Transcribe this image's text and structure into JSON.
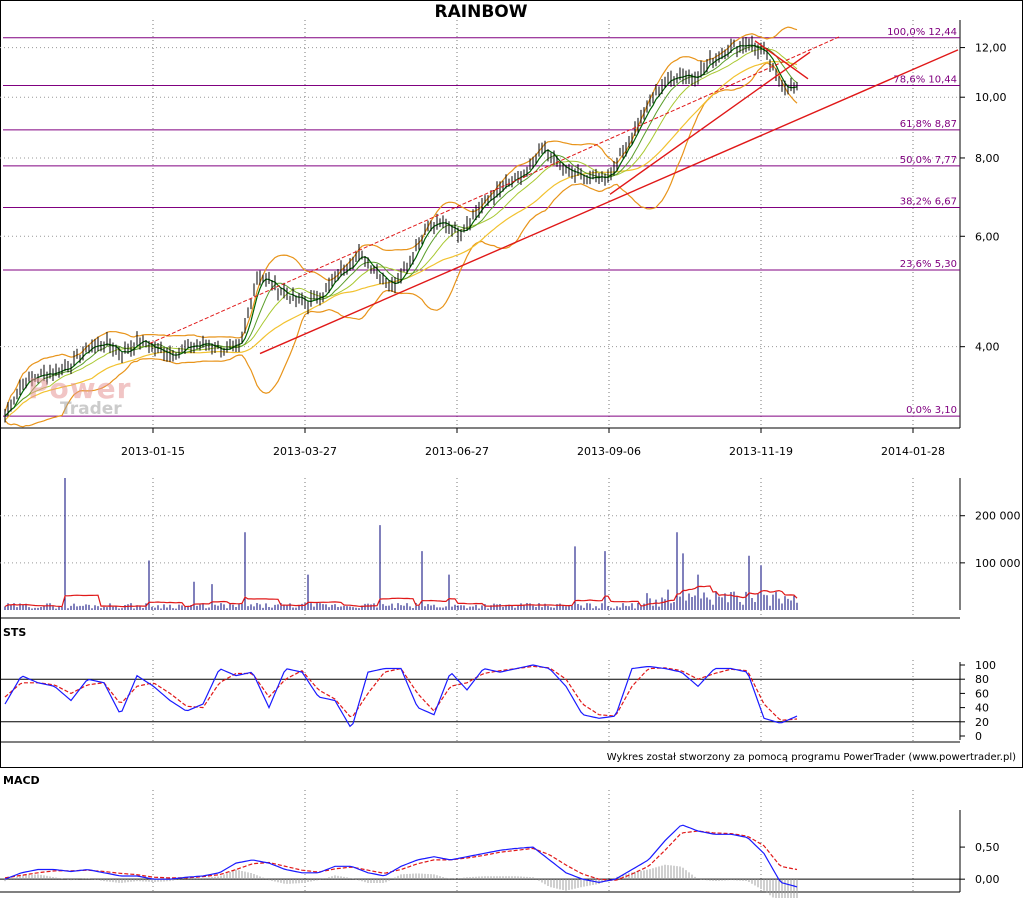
{
  "title": "RAINBOW",
  "footer": "Wykres został stworzony za pomocą programu PowerTrader (www.powertrader.pl)",
  "watermark": {
    "line1": "Power",
    "line2": "Trader"
  },
  "panels": {
    "sts": "STS",
    "macd": "MACD"
  },
  "colors": {
    "candle": "#000000",
    "ma_dark": "#006400",
    "ma_mid": "#5a9e2a",
    "ma_light": "#a8c830",
    "bollinger": "#e8941a",
    "inner_band": "#f2c230",
    "trend": "#e01818",
    "fib": "#800080",
    "volume": "#00007a",
    "volume_avg": "#e01818",
    "sts_k": "#1a1aff",
    "sts_d": "#e01818",
    "macd": "#1a1aff",
    "signal": "#e01818",
    "hist": "#a0a0a0"
  },
  "chart_data": [
    {
      "type": "line",
      "panel": "price",
      "title": "RAINBOW",
      "y_scale": "log",
      "ylim": [
        3.0,
        12.8
      ],
      "y_ticks": [
        "4,00",
        "6,00",
        "8,00",
        "10,00",
        "12,00"
      ],
      "y_tick_values": [
        4,
        6,
        8,
        10,
        12
      ],
      "x_ticks": [
        "2013-01-15",
        "2013-03-27",
        "2013-06-27",
        "2013-09-06",
        "2013-11-19",
        "2014-01-28"
      ],
      "fibonacci": [
        {
          "label": "100,0% 12,44",
          "value": 12.44
        },
        {
          "label": "78,6% 10,44",
          "value": 10.44
        },
        {
          "label": "61,8% 8,87",
          "value": 8.87
        },
        {
          "label": "50,0% 7,77",
          "value": 7.77
        },
        {
          "label": "38,2% 6,67",
          "value": 6.67
        },
        {
          "label": "23,6% 5,30",
          "value": 5.3
        },
        {
          "label": "0,0% 3,10",
          "value": 3.1
        }
      ],
      "close_approx": [
        3.1,
        3.5,
        3.6,
        3.65,
        3.75,
        4.0,
        4.05,
        3.9,
        4.1,
        3.95,
        3.9,
        4.0,
        4.05,
        3.95,
        4.0,
        5.2,
        5.0,
        4.8,
        4.7,
        4.9,
        5.3,
        5.6,
        5.3,
        5.0,
        5.5,
        6.2,
        6.3,
        6.1,
        6.6,
        7.0,
        7.3,
        7.6,
        8.3,
        7.7,
        7.5,
        7.4,
        7.6,
        8.5,
        9.5,
        10.5,
        10.9,
        10.8,
        11.5,
        12.0,
        12.2,
        11.8,
        10.5,
        10.3
      ],
      "series": [
        {
          "role": "price bars"
        },
        {
          "role": "moving average"
        },
        {
          "role": "Bollinger bands"
        },
        {
          "role": "trend lines"
        }
      ]
    },
    {
      "type": "bar",
      "panel": "volume",
      "y_ticks": [
        "100 000",
        "200 000"
      ],
      "y_tick_values": [
        100000,
        200000
      ],
      "ylim": [
        0,
        280000
      ],
      "spikes": [
        {
          "i": 20,
          "v": 280000
        },
        {
          "i": 48,
          "v": 105000
        },
        {
          "i": 63,
          "v": 60000
        },
        {
          "i": 69,
          "v": 55000
        },
        {
          "i": 80,
          "v": 165000
        },
        {
          "i": 101,
          "v": 75000
        },
        {
          "i": 125,
          "v": 180000
        },
        {
          "i": 139,
          "v": 125000
        },
        {
          "i": 148,
          "v": 75000
        },
        {
          "i": 190,
          "v": 135000
        },
        {
          "i": 200,
          "v": 125000
        },
        {
          "i": 224,
          "v": 165000
        },
        {
          "i": 226,
          "v": 120000
        },
        {
          "i": 231,
          "v": 75000
        },
        {
          "i": 248,
          "v": 115000
        },
        {
          "i": 252,
          "v": 95000
        }
      ]
    },
    {
      "type": "line",
      "panel": "STS",
      "y_ticks": [
        "0",
        "20",
        "40",
        "60",
        "80",
        "100"
      ],
      "y_tick_values": [
        0,
        20,
        40,
        60,
        80,
        100
      ],
      "ylim": [
        0,
        100
      ],
      "levels": [
        20,
        80
      ],
      "k_approx": [
        45,
        85,
        75,
        70,
        50,
        80,
        75,
        30,
        85,
        70,
        50,
        35,
        45,
        95,
        85,
        90,
        40,
        95,
        90,
        55,
        50,
        10,
        90,
        95,
        95,
        40,
        30,
        90,
        65,
        95,
        90,
        95,
        100,
        95,
        70,
        30,
        25,
        28,
        95,
        98,
        95,
        90,
        70,
        95,
        95,
        90,
        25,
        18,
        28
      ],
      "d_approx": [
        55,
        75,
        75,
        72,
        60,
        72,
        75,
        45,
        70,
        75,
        60,
        42,
        40,
        75,
        88,
        88,
        55,
        80,
        92,
        65,
        52,
        25,
        60,
        90,
        95,
        60,
        35,
        70,
        75,
        88,
        92,
        95,
        98,
        96,
        80,
        45,
        30,
        28,
        70,
        95,
        96,
        92,
        80,
        88,
        94,
        92,
        45,
        22,
        24
      ]
    },
    {
      "type": "line",
      "panel": "MACD",
      "y_ticks": [
        "0,00",
        "0,50"
      ],
      "y_tick_values": [
        0,
        0.5
      ],
      "ylim": [
        -0.2,
        1.0
      ],
      "macd_approx": [
        0.0,
        0.1,
        0.15,
        0.15,
        0.12,
        0.15,
        0.1,
        0.05,
        0.05,
        0.0,
        0.0,
        0.03,
        0.05,
        0.1,
        0.25,
        0.3,
        0.25,
        0.15,
        0.1,
        0.1,
        0.2,
        0.2,
        0.1,
        0.05,
        0.2,
        0.3,
        0.35,
        0.3,
        0.35,
        0.4,
        0.45,
        0.48,
        0.5,
        0.3,
        0.1,
        0.0,
        -0.05,
        0.0,
        0.15,
        0.3,
        0.6,
        0.85,
        0.75,
        0.7,
        0.7,
        0.65,
        0.4,
        -0.05,
        -0.12
      ],
      "signal_approx": [
        0.02,
        0.06,
        0.1,
        0.13,
        0.13,
        0.14,
        0.12,
        0.09,
        0.07,
        0.03,
        0.02,
        0.02,
        0.04,
        0.07,
        0.15,
        0.24,
        0.26,
        0.2,
        0.14,
        0.11,
        0.16,
        0.19,
        0.14,
        0.09,
        0.15,
        0.24,
        0.3,
        0.3,
        0.33,
        0.37,
        0.42,
        0.45,
        0.48,
        0.38,
        0.22,
        0.08,
        0.0,
        -0.02,
        0.08,
        0.2,
        0.45,
        0.72,
        0.75,
        0.72,
        0.71,
        0.67,
        0.52,
        0.2,
        0.15
      ]
    }
  ]
}
